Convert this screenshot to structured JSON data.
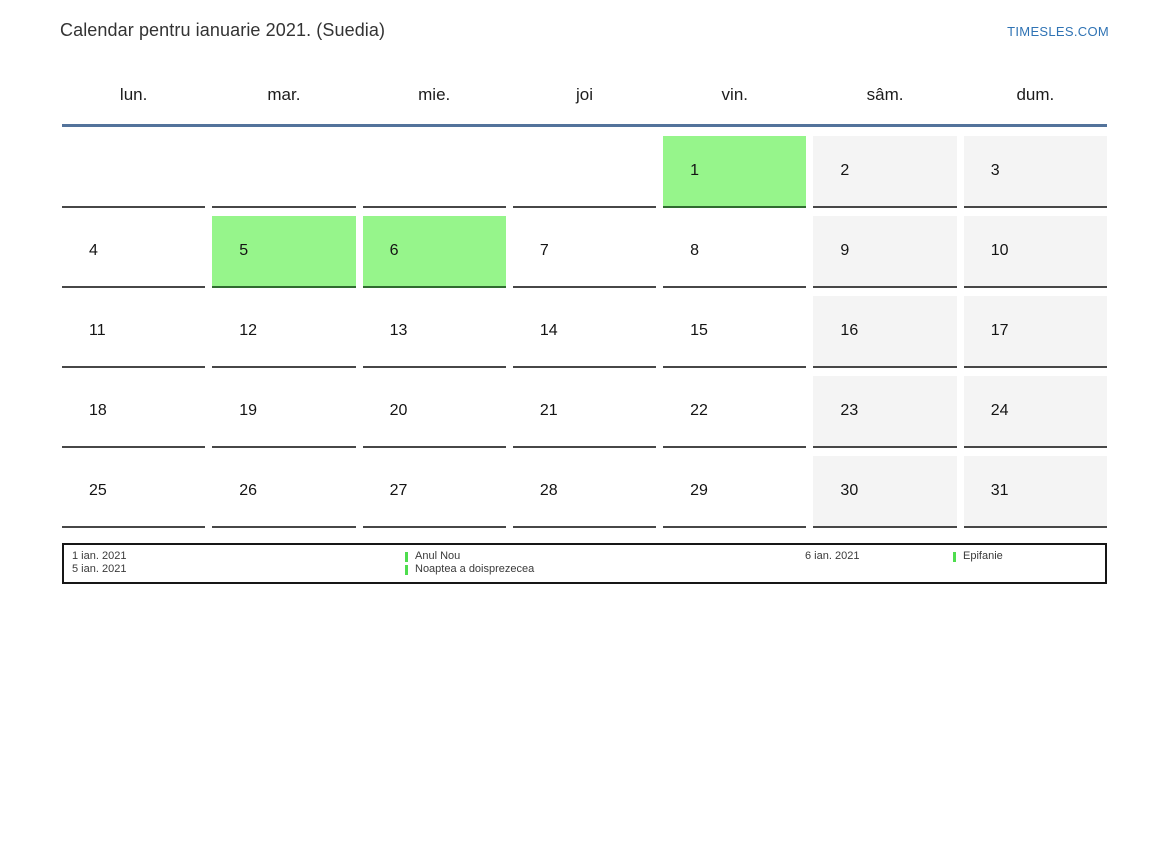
{
  "header": {
    "title": "Calendar pentru ianuarie 2021. (Suedia)",
    "site_link": "TIMESLES.COM"
  },
  "calendar": {
    "weekdays": [
      "lun.",
      "mar.",
      "mie.",
      "joi",
      "vin.",
      "sâm.",
      "dum."
    ],
    "weeks": [
      [
        {
          "d": "",
          "t": ""
        },
        {
          "d": "",
          "t": ""
        },
        {
          "d": "",
          "t": ""
        },
        {
          "d": "",
          "t": ""
        },
        {
          "d": "1",
          "t": "holiday"
        },
        {
          "d": "2",
          "t": "weekend"
        },
        {
          "d": "3",
          "t": "weekend"
        }
      ],
      [
        {
          "d": "4",
          "t": ""
        },
        {
          "d": "5",
          "t": "holiday"
        },
        {
          "d": "6",
          "t": "holiday"
        },
        {
          "d": "7",
          "t": ""
        },
        {
          "d": "8",
          "t": ""
        },
        {
          "d": "9",
          "t": "weekend"
        },
        {
          "d": "10",
          "t": "weekend"
        }
      ],
      [
        {
          "d": "11",
          "t": ""
        },
        {
          "d": "12",
          "t": ""
        },
        {
          "d": "13",
          "t": ""
        },
        {
          "d": "14",
          "t": ""
        },
        {
          "d": "15",
          "t": ""
        },
        {
          "d": "16",
          "t": "weekend"
        },
        {
          "d": "17",
          "t": "weekend"
        }
      ],
      [
        {
          "d": "18",
          "t": ""
        },
        {
          "d": "19",
          "t": ""
        },
        {
          "d": "20",
          "t": ""
        },
        {
          "d": "21",
          "t": ""
        },
        {
          "d": "22",
          "t": ""
        },
        {
          "d": "23",
          "t": "weekend"
        },
        {
          "d": "24",
          "t": "weekend"
        }
      ],
      [
        {
          "d": "25",
          "t": ""
        },
        {
          "d": "26",
          "t": ""
        },
        {
          "d": "27",
          "t": ""
        },
        {
          "d": "28",
          "t": ""
        },
        {
          "d": "29",
          "t": ""
        },
        {
          "d": "30",
          "t": "weekend"
        },
        {
          "d": "31",
          "t": "weekend"
        }
      ]
    ]
  },
  "legend": {
    "rows": [
      {
        "date1": "1 ian. 2021",
        "name1": "Anul Nou",
        "date2": "6 ian. 2021",
        "name2": "Epifanie"
      },
      {
        "date1": "5 ian. 2021",
        "name1": "Noaptea a doisprezecea",
        "date2": "",
        "name2": ""
      }
    ]
  },
  "colors": {
    "holiday_green": "#96f58b",
    "weekend_gray": "#f4f4f4",
    "header_line_blue": "#53739b",
    "cell_border": "#474747",
    "legend_marker_green": "#4edd4e",
    "link_blue": "#2f73b4"
  }
}
